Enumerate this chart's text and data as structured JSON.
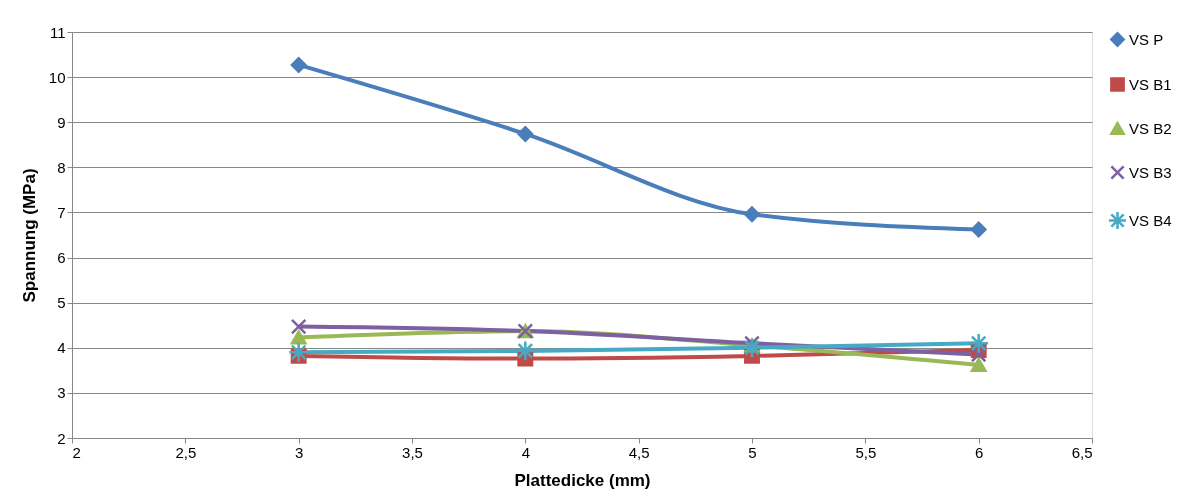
{
  "chart_data": {
    "type": "line",
    "xlabel": "Plattedicke (mm)",
    "ylabel": "Spannung (MPa)",
    "x": [
      3,
      4,
      5,
      6
    ],
    "series": [
      {
        "name": "VS P",
        "color": "#4a7ebb",
        "marker": "diamond",
        "values": [
          10.27,
          8.74,
          6.96,
          6.62
        ]
      },
      {
        "name": "VS B1",
        "color": "#be4b48",
        "marker": "square",
        "values": [
          3.82,
          3.76,
          3.82,
          3.95
        ]
      },
      {
        "name": "VS B2",
        "color": "#98b954",
        "marker": "triangle",
        "values": [
          4.23,
          4.37,
          4.05,
          3.62
        ]
      },
      {
        "name": "VS B3",
        "color": "#7d60a0",
        "marker": "cross",
        "values": [
          4.47,
          4.37,
          4.1,
          3.85
        ]
      },
      {
        "name": "VS B4",
        "color": "#46aac5",
        "marker": "cross",
        "values": [
          3.9,
          3.93,
          4.0,
          4.1
        ]
      }
    ],
    "xlim": [
      2,
      6.5
    ],
    "xticks": [
      2,
      {
        "value": 2.5,
        "label": "2,5"
      },
      3,
      {
        "value": 3.5,
        "label": "3,5"
      },
      4,
      {
        "value": 4.5,
        "label": "4,5"
      },
      5,
      {
        "value": 5.5,
        "label": "5,5"
      },
      6,
      {
        "value": 6.5,
        "label": "6,5"
      }
    ],
    "ylim": [
      2,
      11
    ],
    "yticks": [
      2,
      3,
      4,
      5,
      6,
      7,
      8,
      9,
      10,
      11
    ],
    "grid": "y",
    "legend": "right",
    "line_style": "solid"
  }
}
